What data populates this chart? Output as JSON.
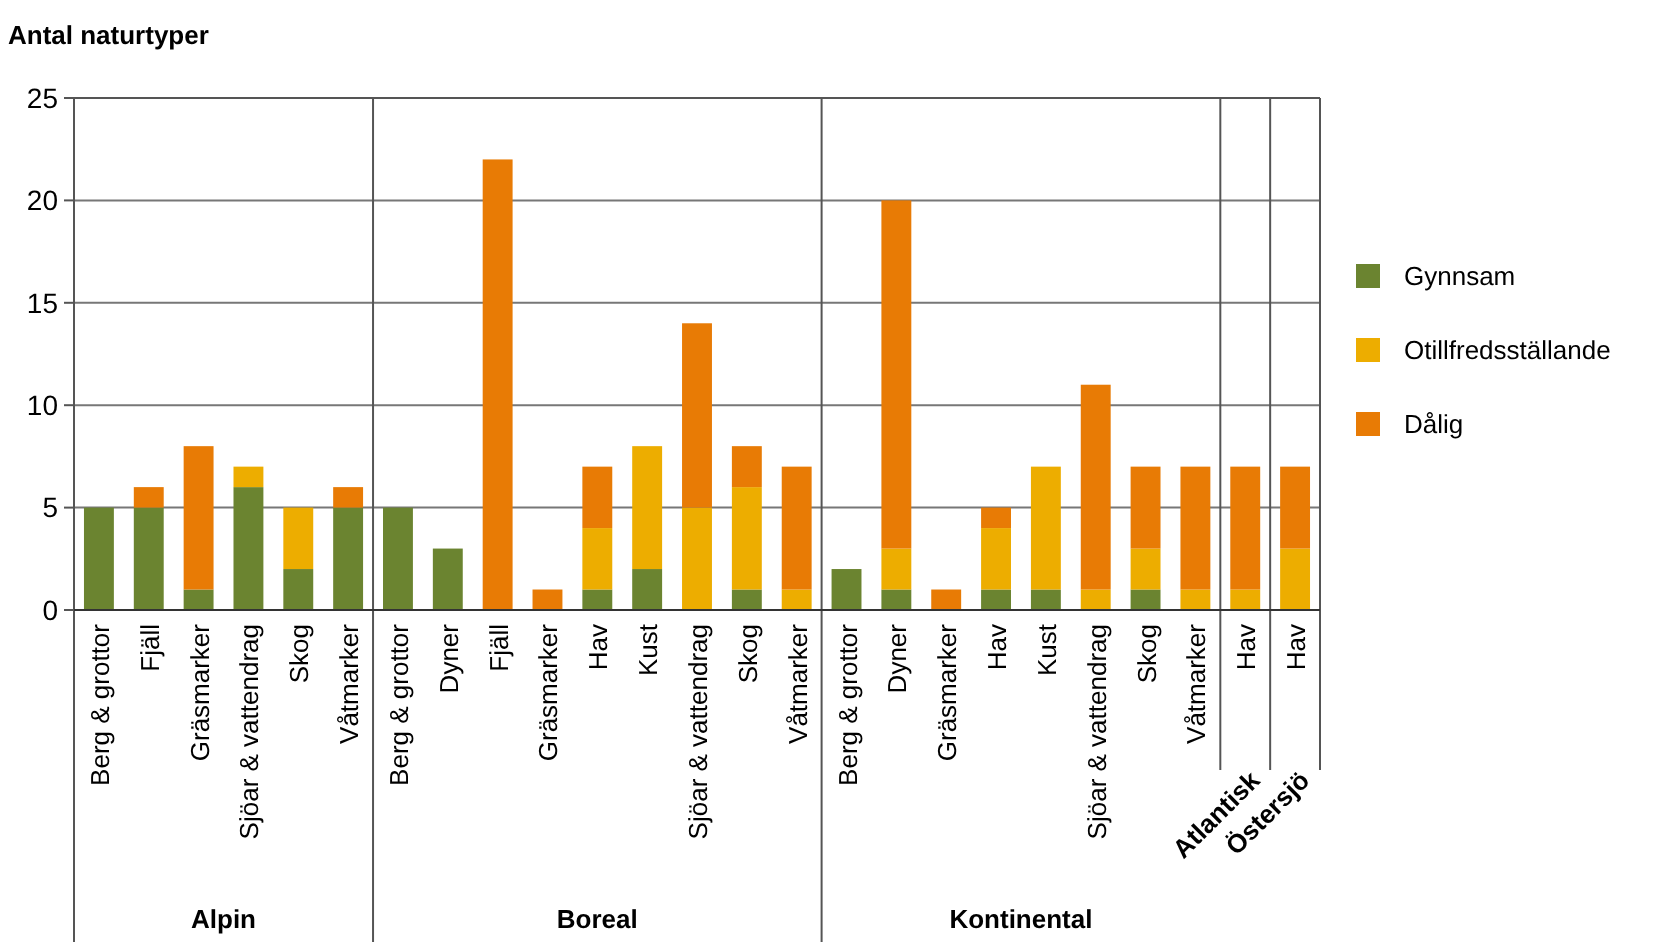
{
  "chart_data": {
    "type": "bar",
    "stacked": true,
    "ylabel": "Antal naturtyper",
    "categories": [
      "Berg & grottor",
      "Fjäll",
      "Gräsmarker",
      "Sjöar & vattendrag",
      "Skog",
      "Våtmarker",
      "Berg & grottor",
      "Dyner",
      "Fjäll",
      "Gräsmarker",
      "Hav",
      "Kust",
      "Sjöar & vattendrag",
      "Skog",
      "Våtmarker",
      "Berg & grottor",
      "Dyner",
      "Gräsmarker",
      "Hav",
      "Kust",
      "Sjöar & vattendrag",
      "Skog",
      "Våtmarker",
      "Hav",
      "Hav"
    ],
    "series": [
      {
        "name": "Gynnsam",
        "color": "#6b8430",
        "values": [
          5,
          5,
          1,
          6,
          2,
          5,
          5,
          3,
          0,
          0,
          1,
          2,
          0,
          1,
          0,
          2,
          1,
          0,
          1,
          1,
          0,
          1,
          0,
          0,
          0
        ]
      },
      {
        "name": "Otillfredsställande",
        "color": "#edad00",
        "values": [
          0,
          0,
          0,
          1,
          3,
          0,
          0,
          0,
          0,
          0,
          3,
          6,
          5,
          5,
          1,
          0,
          2,
          0,
          3,
          6,
          1,
          2,
          1,
          1,
          3
        ]
      },
      {
        "name": "Dålig",
        "color": "#e87b05",
        "values": [
          0,
          1,
          7,
          0,
          0,
          1,
          0,
          0,
          22,
          1,
          3,
          0,
          9,
          2,
          6,
          0,
          17,
          1,
          1,
          0,
          10,
          4,
          6,
          6,
          4
        ]
      }
    ],
    "ylim": [
      0,
      25
    ],
    "yticks": [
      0,
      5,
      10,
      15,
      20,
      25
    ],
    "grid": "y",
    "legend": "right",
    "annotations": [
      "Alpin",
      "Boreal",
      "Kontinental",
      "Atlantisk",
      "Östersjö"
    ]
  }
}
